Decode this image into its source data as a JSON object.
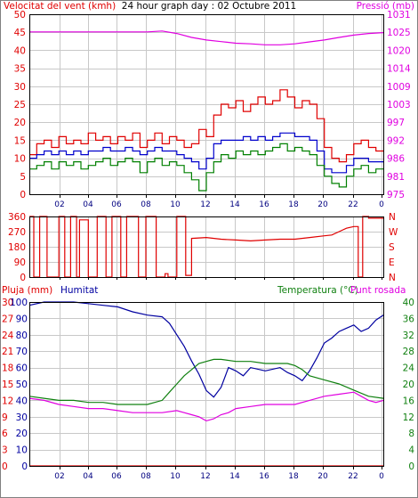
{
  "colors": {
    "wind": "#e00000",
    "gust": "#e00000",
    "wind_avg": "#0000cc",
    "wind_green": "#008000",
    "pressure": "#e000e0",
    "direction": "#e00000",
    "rain": "#e00000",
    "humidity": "#0000a0",
    "temperature": "#108010",
    "dew_point": "#e000e0",
    "grid": "#c8c8c8",
    "frame": "#000000"
  },
  "chart_data": [
    {
      "type": "line",
      "title": "24 hour graph day : 02 Octubre 2011",
      "ylabel": "Velocitat del vent (kmh)",
      "y2label": "Pressió (mb)",
      "xlim": [
        0,
        24
      ],
      "ylim": [
        0,
        50
      ],
      "y2lim": [
        975,
        1031
      ],
      "xticks": [
        "02",
        "04",
        "06",
        "08",
        "10",
        "12",
        "14",
        "16",
        "18",
        "20",
        "22",
        "0"
      ],
      "yticks": [
        "0",
        "5",
        "10",
        "15",
        "20",
        "25",
        "30",
        "35",
        "40",
        "45",
        "50"
      ],
      "y2ticks": [
        "975",
        "981",
        "986",
        "992",
        "997",
        "1003",
        "1009",
        "1014",
        "1020",
        "1025",
        "1031"
      ],
      "grid": true,
      "series": [
        {
          "key": "gust",
          "color_key": "gust",
          "x": [
            0,
            0.5,
            1,
            1.5,
            2,
            2.5,
            3,
            3.5,
            4,
            4.5,
            5,
            5.5,
            6,
            6.5,
            7,
            7.5,
            8,
            8.5,
            9,
            9.5,
            10,
            10.5,
            11,
            11.5,
            12,
            12.5,
            13,
            13.5,
            14,
            14.5,
            15,
            15.5,
            16,
            16.5,
            17,
            17.5,
            18,
            18.5,
            19,
            19.5,
            20,
            20.5,
            21,
            21.5,
            22,
            22.5,
            23,
            23.5
          ],
          "y": [
            11,
            14,
            15,
            13,
            16,
            14,
            15,
            14,
            17,
            15,
            16,
            14,
            16,
            15,
            17,
            13,
            15,
            17,
            14,
            16,
            15,
            13,
            14,
            18,
            16,
            22,
            25,
            24,
            26,
            23,
            25,
            27,
            25,
            26,
            29,
            27,
            24,
            26,
            25,
            21,
            13,
            10,
            9,
            11,
            14,
            15,
            13,
            12
          ]
        },
        {
          "key": "wind_avg",
          "color_key": "wind_avg",
          "x": [
            0,
            0.5,
            1,
            1.5,
            2,
            2.5,
            3,
            3.5,
            4,
            4.5,
            5,
            5.5,
            6,
            6.5,
            7,
            7.5,
            8,
            8.5,
            9,
            9.5,
            10,
            10.5,
            11,
            11.5,
            12,
            12.5,
            13,
            13.5,
            14,
            14.5,
            15,
            15.5,
            16,
            16.5,
            17,
            17.5,
            18,
            18.5,
            19,
            19.5,
            20,
            20.5,
            21,
            21.5,
            22,
            22.5,
            23,
            23.5
          ],
          "y": [
            10,
            11,
            12,
            11,
            12,
            11,
            12,
            11,
            12,
            12,
            13,
            12,
            12,
            13,
            12,
            11,
            12,
            13,
            12,
            12,
            11,
            10,
            9,
            7,
            10,
            14,
            15,
            15,
            15,
            16,
            15,
            16,
            15,
            16,
            17,
            17,
            16,
            16,
            15,
            12,
            7,
            6,
            6,
            8,
            10,
            10,
            9,
            9
          ]
        },
        {
          "key": "wind",
          "color_key": "wind_green",
          "x": [
            0,
            0.5,
            1,
            1.5,
            2,
            2.5,
            3,
            3.5,
            4,
            4.5,
            5,
            5.5,
            6,
            6.5,
            7,
            7.5,
            8,
            8.5,
            9,
            9.5,
            10,
            10.5,
            11,
            11.5,
            12,
            12.5,
            13,
            13.5,
            14,
            14.5,
            15,
            15.5,
            16,
            16.5,
            17,
            17.5,
            18,
            18.5,
            19,
            19.5,
            20,
            20.5,
            21,
            21.5,
            22,
            22.5,
            23,
            23.5
          ],
          "y": [
            7,
            8,
            9,
            7,
            9,
            8,
            9,
            7,
            8,
            9,
            10,
            8,
            9,
            10,
            9,
            6,
            9,
            10,
            8,
            9,
            8,
            6,
            4,
            1,
            6,
            9,
            11,
            10,
            12,
            11,
            12,
            11,
            12,
            13,
            14,
            12,
            13,
            12,
            11,
            8,
            5,
            3,
            2,
            5,
            7,
            8,
            6,
            7
          ]
        },
        {
          "key": "pressure",
          "color_key": "pressure",
          "axis": "y2",
          "x": [
            0,
            2,
            4,
            6,
            8,
            9,
            10,
            11,
            12,
            13,
            14,
            15,
            16,
            17,
            18,
            19,
            20,
            21,
            22,
            23,
            24
          ],
          "y": [
            1025.5,
            1025.5,
            1025.5,
            1025.5,
            1025.5,
            1025.8,
            1025.0,
            1023.8,
            1023.0,
            1022.5,
            1022.0,
            1021.8,
            1021.5,
            1021.5,
            1021.8,
            1022.4,
            1023.0,
            1023.8,
            1024.5,
            1025.0,
            1025.3
          ]
        }
      ]
    },
    {
      "type": "line",
      "xlim": [
        0,
        24
      ],
      "ylim": [
        0,
        360
      ],
      "yticks": [
        "0",
        "90",
        "180",
        "270",
        "360"
      ],
      "y2ticks": [
        "N",
        "E",
        "S",
        "W",
        "N"
      ],
      "grid": true,
      "series": [
        {
          "key": "direction",
          "color_key": "direction",
          "x": [
            0,
            0.3,
            0.3,
            0.7,
            0.7,
            1.2,
            1.2,
            2.0,
            2.0,
            2.4,
            2.4,
            2.8,
            2.8,
            3.2,
            3.2,
            3.4,
            3.4,
            4.0,
            4.0,
            4.6,
            4.6,
            5.2,
            5.2,
            5.6,
            5.6,
            6.2,
            6.2,
            6.6,
            6.6,
            7.4,
            7.4,
            7.9,
            7.9,
            8.6,
            8.6,
            9.2,
            9.2,
            9.4,
            9.4,
            10.0,
            10.0,
            10.6,
            10.6,
            11.0,
            11.0,
            12.0,
            13.0,
            14.0,
            15.0,
            16.0,
            17.0,
            18.0,
            19.0,
            20.0,
            20.5,
            21.0,
            21.5,
            22.0,
            22.3,
            22.3,
            22.6,
            22.6,
            23.0,
            23.0,
            24.0
          ],
          "y": [
            360,
            360,
            0,
            0,
            360,
            360,
            0,
            0,
            360,
            360,
            0,
            0,
            360,
            360,
            0,
            0,
            340,
            340,
            0,
            0,
            360,
            360,
            0,
            0,
            360,
            360,
            0,
            0,
            360,
            360,
            0,
            0,
            360,
            360,
            0,
            0,
            20,
            20,
            0,
            0,
            360,
            360,
            10,
            10,
            230,
            235,
            225,
            220,
            215,
            220,
            225,
            225,
            235,
            245,
            250,
            270,
            290,
            300,
            300,
            0,
            0,
            360,
            360,
            350,
            350
          ]
        }
      ]
    },
    {
      "type": "line",
      "ylabel": "Pluja (mm)",
      "ylabel2": "Humitat",
      "y2label": "Temperatura (°C)",
      "y2label2": "Punt rosada",
      "xlim": [
        0,
        24
      ],
      "xticks": [
        "02",
        "04",
        "06",
        "08",
        "10",
        "12",
        "14",
        "16",
        "18",
        "20",
        "22",
        "0"
      ],
      "ylim": [
        0,
        100
      ],
      "y2lim": [
        0,
        40
      ],
      "rain_ticks": [
        "0",
        "3",
        "6",
        "9",
        "12",
        "15",
        "18",
        "21",
        "24",
        "27",
        "30"
      ],
      "hum_ticks": [
        "0",
        "10",
        "20",
        "30",
        "40",
        "50",
        "60",
        "70",
        "80",
        "90",
        "100"
      ],
      "y2ticks": [
        "0",
        "4",
        "8",
        "12",
        "16",
        "20",
        "24",
        "28",
        "32",
        "36",
        "40"
      ],
      "grid": true,
      "series": [
        {
          "key": "rain",
          "color_key": "rain",
          "axis": "rain",
          "x": [
            0,
            24
          ],
          "y": [
            0,
            0
          ]
        },
        {
          "key": "humidity",
          "color_key": "humidity",
          "x": [
            0,
            1,
            2,
            3,
            4,
            5,
            6,
            7,
            8,
            9,
            9.5,
            10,
            10.5,
            11,
            11.5,
            12,
            12.5,
            13,
            13.5,
            14,
            14.5,
            15,
            16,
            17,
            17.5,
            18,
            18.5,
            19,
            19.5,
            20,
            20.5,
            21,
            21.5,
            22,
            22.5,
            23,
            23.5,
            24
          ],
          "y": [
            98,
            100,
            100,
            100,
            99,
            98,
            97,
            94,
            92,
            91,
            87,
            80,
            73,
            64,
            56,
            46,
            42,
            48,
            60,
            58,
            55,
            60,
            58,
            60,
            57,
            55,
            52,
            58,
            66,
            75,
            78,
            82,
            84,
            86,
            82,
            84,
            89,
            92
          ]
        },
        {
          "key": "temperature",
          "color_key": "temperature",
          "axis": "y2",
          "x": [
            0,
            1,
            2,
            3,
            4,
            5,
            6,
            7,
            8,
            9,
            9.5,
            10,
            10.5,
            11,
            11.5,
            12,
            12.5,
            13,
            14,
            15,
            16,
            17,
            17.5,
            18,
            18.5,
            19,
            20,
            21,
            22,
            23,
            24
          ],
          "y": [
            17,
            16.5,
            16,
            16,
            15.5,
            15.5,
            15,
            15,
            15,
            16,
            18,
            20,
            22,
            23.5,
            25,
            25.5,
            26,
            26,
            25.5,
            25.5,
            25,
            25,
            25,
            24.5,
            23.5,
            22,
            21,
            20,
            18.5,
            17,
            16.5
          ]
        },
        {
          "key": "dew_point",
          "color_key": "dew_point",
          "axis": "y2",
          "x": [
            0,
            1,
            2,
            3,
            4,
            5,
            6,
            7,
            8,
            9,
            10,
            10.5,
            11,
            11.5,
            12,
            12.5,
            13,
            13.5,
            14,
            15,
            16,
            17,
            18,
            19,
            20,
            21,
            22,
            22.5,
            23,
            23.5,
            24
          ],
          "y": [
            16.5,
            16,
            15,
            14.5,
            14,
            14,
            13.5,
            13,
            13,
            13,
            13.5,
            13,
            12.5,
            12,
            11,
            11.5,
            12.5,
            13,
            14,
            14.5,
            15,
            15,
            15,
            16,
            17,
            17.5,
            18,
            17,
            16,
            15.5,
            16
          ]
        }
      ]
    }
  ]
}
